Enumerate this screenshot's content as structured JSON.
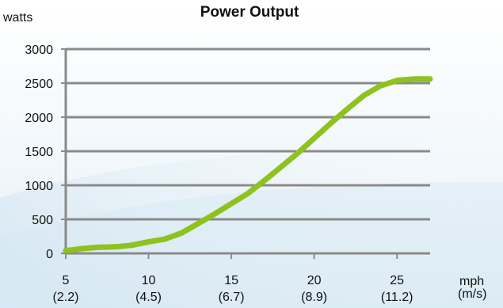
{
  "chart_data": {
    "type": "line",
    "title": "Power Output",
    "ylabel": "watts",
    "xlabel": "mph",
    "xlabel_sub": "(m/s)",
    "ylim": [
      0,
      3000
    ],
    "xlim": [
      5,
      27
    ],
    "y_ticks": [
      0,
      500,
      1000,
      1500,
      2000,
      2500,
      3000
    ],
    "x_ticks": [
      {
        "value": 5,
        "label": "5",
        "sublabel": "(2.2)"
      },
      {
        "value": 10,
        "label": "10",
        "sublabel": "(4.5)"
      },
      {
        "value": 15,
        "label": "15",
        "sublabel": "(6.7)"
      },
      {
        "value": 20,
        "label": "20",
        "sublabel": "(8.9)"
      },
      {
        "value": 25,
        "label": "25",
        "sublabel": "(11.2)"
      }
    ],
    "grid": true,
    "series": [
      {
        "color": "#8dc21f",
        "x": [
          5,
          6,
          7,
          8,
          9,
          10,
          11,
          12,
          13,
          14,
          15,
          16,
          17,
          18,
          19,
          20,
          21,
          22,
          23,
          24,
          25,
          26,
          27
        ],
        "y": [
          40,
          70,
          90,
          95,
          120,
          170,
          210,
          300,
          440,
          580,
          730,
          880,
          1070,
          1270,
          1470,
          1690,
          1910,
          2120,
          2320,
          2460,
          2540,
          2560,
          2560
        ]
      }
    ]
  }
}
